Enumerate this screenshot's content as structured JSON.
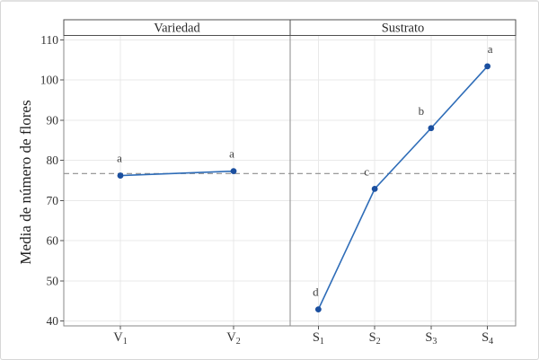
{
  "figure": {
    "background": "#ffffff",
    "border_color": "#d6d6d6"
  },
  "chart_data": {
    "type": "line",
    "subtype": "main-effects-plot",
    "ylabel": "Media de número de flores",
    "ylim": [
      40,
      110
    ],
    "yticks": [
      40,
      50,
      60,
      70,
      80,
      90,
      100,
      110
    ],
    "grid": true,
    "reference_line": {
      "value": 76.7,
      "style": "dashed",
      "color": "#8f8f8f"
    },
    "panels": [
      {
        "title": "Variedad",
        "categories": [
          {
            "base": "V",
            "sub": "1"
          },
          {
            "base": "V",
            "sub": "2"
          }
        ],
        "values": [
          76.2,
          77.3
        ],
        "point_labels": [
          "a",
          "a"
        ],
        "label_dx": [
          -1,
          -2
        ]
      },
      {
        "title": "Sustrato",
        "categories": [
          {
            "base": "S",
            "sub": "1"
          },
          {
            "base": "S",
            "sub": "2"
          },
          {
            "base": "S",
            "sub": "3"
          },
          {
            "base": "S",
            "sub": "4"
          }
        ],
        "values": [
          42.9,
          72.9,
          88.0,
          103.4
        ],
        "point_labels": [
          "d",
          "c",
          "b",
          "a"
        ],
        "label_dx": [
          -3,
          -9,
          -11,
          3
        ]
      }
    ],
    "colors": {
      "line": "#2f6db8",
      "marker": "#1b4f9f",
      "grid": "#e9e9e9",
      "axis": "#8a8a8a",
      "strip_border": "#4f4f4f",
      "tick": "#555555",
      "text": "#2b2b2b",
      "letter": "#3f3f3f"
    }
  }
}
